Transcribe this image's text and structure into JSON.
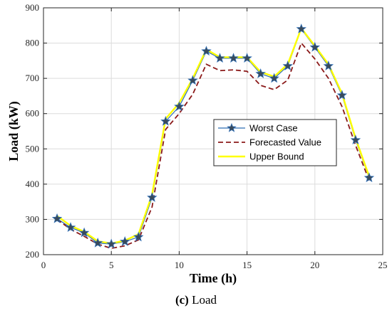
{
  "chart_data": {
    "type": "line",
    "xlabel": "Time (h)",
    "ylabel": "Load (kW)",
    "xlim": [
      0,
      25
    ],
    "ylim": [
      200,
      900
    ],
    "xticks": [
      0,
      5,
      10,
      15,
      20,
      25
    ],
    "yticks": [
      200,
      300,
      400,
      500,
      600,
      700,
      800,
      900
    ],
    "grid": true,
    "legend_position": "center-right",
    "x": [
      1,
      2,
      3,
      4,
      5,
      6,
      7,
      8,
      9,
      10,
      11,
      12,
      13,
      14,
      15,
      16,
      17,
      18,
      19,
      20,
      21,
      22,
      23,
      24
    ],
    "series": [
      {
        "name": "Worst Case",
        "color": "#2e6db4",
        "marker": "star",
        "marker_color": "#3a4a5a",
        "values": [
          302,
          277,
          262,
          233,
          230,
          237,
          250,
          362,
          578,
          620,
          694,
          777,
          757,
          757,
          757,
          713,
          700,
          735,
          840,
          788,
          735,
          652,
          525,
          418
        ]
      },
      {
        "name": "Forecasted Value",
        "color": "#8b1a1a",
        "dash": true,
        "values": [
          300,
          272,
          252,
          230,
          218,
          225,
          242,
          335,
          555,
          600,
          655,
          740,
          722,
          724,
          720,
          680,
          668,
          695,
          800,
          755,
          700,
          620,
          510,
          410
        ]
      },
      {
        "name": "Upper Bound",
        "color": "#ffff00",
        "values": [
          310,
          282,
          265,
          238,
          232,
          240,
          258,
          370,
          585,
          630,
          700,
          782,
          760,
          760,
          760,
          718,
          705,
          740,
          842,
          792,
          740,
          657,
          530,
          422
        ]
      }
    ]
  },
  "caption": {
    "label": "(c)",
    "text": "Load"
  }
}
